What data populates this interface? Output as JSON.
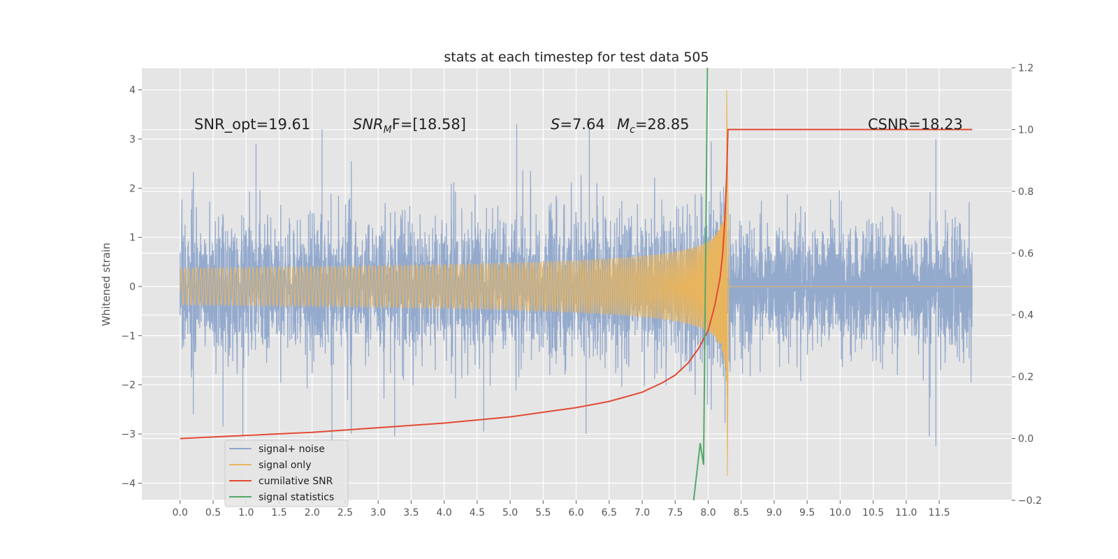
{
  "chart_data": {
    "type": "line",
    "title": "stats at each timestep for test data 505",
    "ylabel": "Whitened strain",
    "ylabel_right": "",
    "xlim": [
      -0.58,
      12.6
    ],
    "ylim": [
      -4.35,
      4.45
    ],
    "ylim_right": [
      -0.2,
      1.2
    ],
    "x_ticks": [
      0.0,
      0.5,
      1.0,
      1.5,
      2.0,
      2.5,
      3.0,
      3.5,
      4.0,
      4.5,
      5.0,
      5.5,
      6.0,
      6.5,
      7.0,
      7.5,
      8.0,
      8.5,
      9.0,
      9.5,
      10.0,
      10.5,
      11.0,
      11.5
    ],
    "x_tick_labels": [
      "0.0",
      "0.5",
      "1.0",
      "1.5",
      "2.0",
      "2.5",
      "3.0",
      "3.5",
      "4.0",
      "4.5",
      "5.0",
      "5.5",
      "6.0",
      "6.5",
      "7.0",
      "7.5",
      "8.0",
      "8.5",
      "9.0",
      "9.5",
      "10.0",
      "10.5",
      "11.0",
      "11.5"
    ],
    "y_ticks": [
      -4,
      -3,
      -2,
      -1,
      0,
      1,
      2,
      3,
      4
    ],
    "y_tick_labels": [
      "−4",
      "−3",
      "−2",
      "−1",
      "0",
      "1",
      "2",
      "3",
      "4"
    ],
    "y_ticks_right": [
      -0.2,
      0.0,
      0.2,
      0.4,
      0.6,
      0.8,
      1.0,
      1.2
    ],
    "y_tick_labels_right": [
      "−0.2",
      "0.0",
      "0.2",
      "0.4",
      "0.6",
      "0.8",
      "1.0",
      "1.2"
    ],
    "grid": true,
    "legend_placement": "lower-left",
    "annotations": {
      "snr_opt": "SNR_opt=19.61",
      "snr_mf_main": "SNR",
      "snr_mf_sub": "M",
      "snr_mf_rest": "F=[18.58]",
      "s_main": "S",
      "s_rest": "=7.64",
      "mc_main": "M",
      "mc_sub": "c",
      "mc_rest": "=28.85",
      "csnr": "CSNR=18.23"
    },
    "series": [
      {
        "name": "signal+ noise",
        "color": "#8fa6cb",
        "axis": "left",
        "kind": "noise",
        "x_range": [
          0.0,
          12.0
        ],
        "std": 0.68,
        "peaks": [
          [
            0.2,
            -2.6
          ],
          [
            0.65,
            -2.85
          ],
          [
            0.95,
            -3.05
          ],
          [
            2.3,
            -3.15
          ],
          [
            3.25,
            -3.05
          ],
          [
            4.6,
            -2.95
          ],
          [
            6.15,
            -3.0
          ],
          [
            10.9,
            0.0
          ],
          [
            11.35,
            -3.05
          ],
          [
            11.45,
            -3.25
          ],
          [
            5.1,
            3.3
          ],
          [
            2.15,
            3.2
          ],
          [
            6.2,
            3.2
          ],
          [
            11.45,
            3.0
          ],
          [
            1.15,
            2.9
          ]
        ]
      },
      {
        "name": "signal only",
        "color": "#e8b55e",
        "axis": "left",
        "kind": "chirp",
        "merger_x": 8.29,
        "peak_amplitude": 4.0
      },
      {
        "name": "cumilative SNR",
        "color": "#e24a33",
        "axis": "right",
        "x": [
          0.0,
          1.0,
          2.0,
          3.0,
          4.0,
          5.0,
          5.5,
          6.0,
          6.5,
          7.0,
          7.3,
          7.5,
          7.7,
          7.85,
          8.0,
          8.1,
          8.18,
          8.22,
          8.25,
          8.28,
          8.3,
          12.0
        ],
        "y": [
          0.0,
          0.01,
          0.02,
          0.035,
          0.05,
          0.07,
          0.085,
          0.1,
          0.12,
          0.15,
          0.18,
          0.205,
          0.245,
          0.29,
          0.35,
          0.43,
          0.52,
          0.6,
          0.7,
          0.85,
          1.0,
          1.0
        ]
      },
      {
        "name": "signal statistics",
        "color": "#55a868",
        "axis": "right",
        "x": [
          7.78,
          7.88,
          7.93,
          7.99
        ],
        "y": [
          -0.2,
          -0.015,
          -0.085,
          1.2
        ]
      }
    ]
  }
}
